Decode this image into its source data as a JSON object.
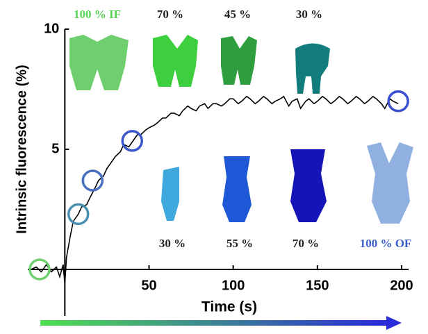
{
  "chart_data": {
    "type": "line",
    "y_label": "Intrinsic fluorescence (%)",
    "x_label": "Time (s)",
    "xlim": [
      -22,
      200
    ],
    "ylim": [
      0,
      10
    ],
    "xticks": [
      50,
      100,
      150,
      200
    ],
    "yticks": [
      5,
      10
    ],
    "series": [
      {
        "color": "#000000",
        "x": [
          -20,
          -17,
          -14,
          -11,
          -8,
          -5,
          -3,
          -1,
          0,
          1,
          3,
          5,
          8,
          10,
          13,
          15,
          18,
          20,
          23,
          25,
          28,
          30,
          33,
          35,
          38,
          40,
          43,
          45,
          48,
          50,
          53,
          55,
          58,
          60,
          63,
          65,
          68,
          70,
          73,
          75,
          78,
          80,
          83,
          85,
          88,
          90,
          93,
          95,
          98,
          100,
          103,
          105,
          108,
          110,
          113,
          115,
          118,
          120,
          123,
          125,
          128,
          130,
          133,
          135,
          138,
          140,
          143,
          145,
          148,
          150,
          153,
          155,
          158,
          160,
          163,
          165,
          168,
          170,
          173,
          175,
          178,
          180,
          183,
          185,
          188,
          190,
          193,
          195,
          198
        ],
        "values": [
          0,
          0.1,
          -0.1,
          0.2,
          -0.1,
          0.1,
          -0.3,
          0.2,
          -0.6,
          0.5,
          1.3,
          2.0,
          2.3,
          2.6,
          2.7,
          3.0,
          3.4,
          3.7,
          3.9,
          4.2,
          4.5,
          4.7,
          4.9,
          5.2,
          5.1,
          5.3,
          5.6,
          5.6,
          5.8,
          5.9,
          6.0,
          6.1,
          6.3,
          6.3,
          6.5,
          6.5,
          6.4,
          6.6,
          6.8,
          6.7,
          6.6,
          6.8,
          6.9,
          6.7,
          6.9,
          6.9,
          6.8,
          6.9,
          7.1,
          7.1,
          6.9,
          7.0,
          7.2,
          7.1,
          6.9,
          7.0,
          7.2,
          7.1,
          6.9,
          7.0,
          7.1,
          7.2,
          6.8,
          7.0,
          7.1,
          6.7,
          7.0,
          7.1,
          6.9,
          7.0,
          7.2,
          7.1,
          6.9,
          7.0,
          7.2,
          7.1,
          6.9,
          7.0,
          7.2,
          7.1,
          6.9,
          7.0,
          7.2,
          7.1,
          6.9,
          6.7,
          7.1,
          7.0,
          6.9
        ]
      }
    ],
    "highlight_points": {
      "x": [
        -15,
        8,
        16.5,
        40,
        198
      ],
      "values": [
        0,
        2.3,
        3.7,
        5.35,
        7.0
      ],
      "colors": [
        "#6fd06f",
        "#4a8fb0",
        "#4a6fbf",
        "#3a56c8",
        "#3a4fd0"
      ]
    },
    "annotations": [
      {
        "text": "100 % IF",
        "color": "#55d455"
      },
      {
        "text": "70 %",
        "color": "#222222"
      },
      {
        "text": "45 %",
        "color": "#222222"
      },
      {
        "text": "30 %",
        "color": "#222222"
      },
      {
        "text": "30 %",
        "color": "#222222"
      },
      {
        "text": "55 %",
        "color": "#222222"
      },
      {
        "text": "70 %",
        "color": "#222222"
      },
      {
        "text": "100 % OF",
        "color": "#3a5fcd"
      }
    ]
  }
}
